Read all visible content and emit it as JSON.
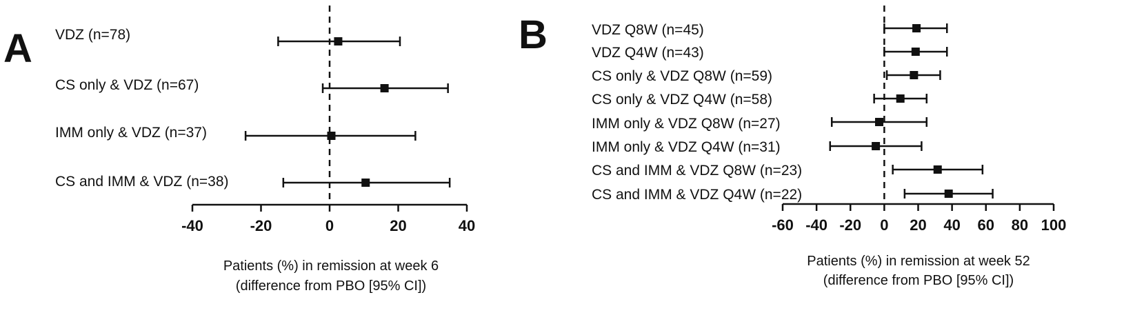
{
  "chart_data": [
    {
      "type": "forest",
      "panel_label": "A",
      "xlabel_line1": "Patients (%) in remission at week 6",
      "xlabel_line2": "(difference from PBO [95% CI])",
      "xlim": [
        -40,
        40
      ],
      "ticks": [
        -40,
        -20,
        0,
        20,
        40
      ],
      "reference_line": 0,
      "rows": [
        {
          "label": "VDZ (n=78)",
          "estimate": 2.5,
          "lower": -15,
          "upper": 20.5
        },
        {
          "label": "CS only & VDZ (n=67)",
          "estimate": 16,
          "lower": -2,
          "upper": 34.5
        },
        {
          "label": "IMM only & VDZ (n=37)",
          "estimate": 0.5,
          "lower": -24.5,
          "upper": 25
        },
        {
          "label": "CS and IMM & VDZ (n=38)",
          "estimate": 10.5,
          "lower": -13.5,
          "upper": 35
        }
      ]
    },
    {
      "type": "forest",
      "panel_label": "B",
      "xlabel_line1": "Patients (%) in remission at week 52",
      "xlabel_line2": "(difference from PBO [95% CI])",
      "xlim": [
        -60,
        100
      ],
      "ticks": [
        -60,
        -40,
        -20,
        0,
        20,
        40,
        60,
        80,
        100
      ],
      "reference_line": 0,
      "rows": [
        {
          "label": "VDZ Q8W (n=45)",
          "estimate": 19,
          "lower": 0,
          "upper": 37
        },
        {
          "label": "VDZ Q4W (n=43)",
          "estimate": 18.5,
          "lower": 0,
          "upper": 37
        },
        {
          "label": "CS only & VDZ Q8W (n=59)",
          "estimate": 17.5,
          "lower": 1.5,
          "upper": 33
        },
        {
          "label": "CS only & VDZ Q4W (n=58)",
          "estimate": 9.5,
          "lower": -6,
          "upper": 25
        },
        {
          "label": "IMM only & VDZ Q8W (n=27)",
          "estimate": -3,
          "lower": -31,
          "upper": 25
        },
        {
          "label": "IMM only & VDZ Q4W (n=31)",
          "estimate": -5,
          "lower": -32,
          "upper": 22
        },
        {
          "label": "CS and IMM & VDZ Q8W (n=23)",
          "estimate": 31.5,
          "lower": 5,
          "upper": 58
        },
        {
          "label": "CS and IMM & VDZ Q4W (n=22)",
          "estimate": 38,
          "lower": 12,
          "upper": 64
        }
      ]
    }
  ]
}
